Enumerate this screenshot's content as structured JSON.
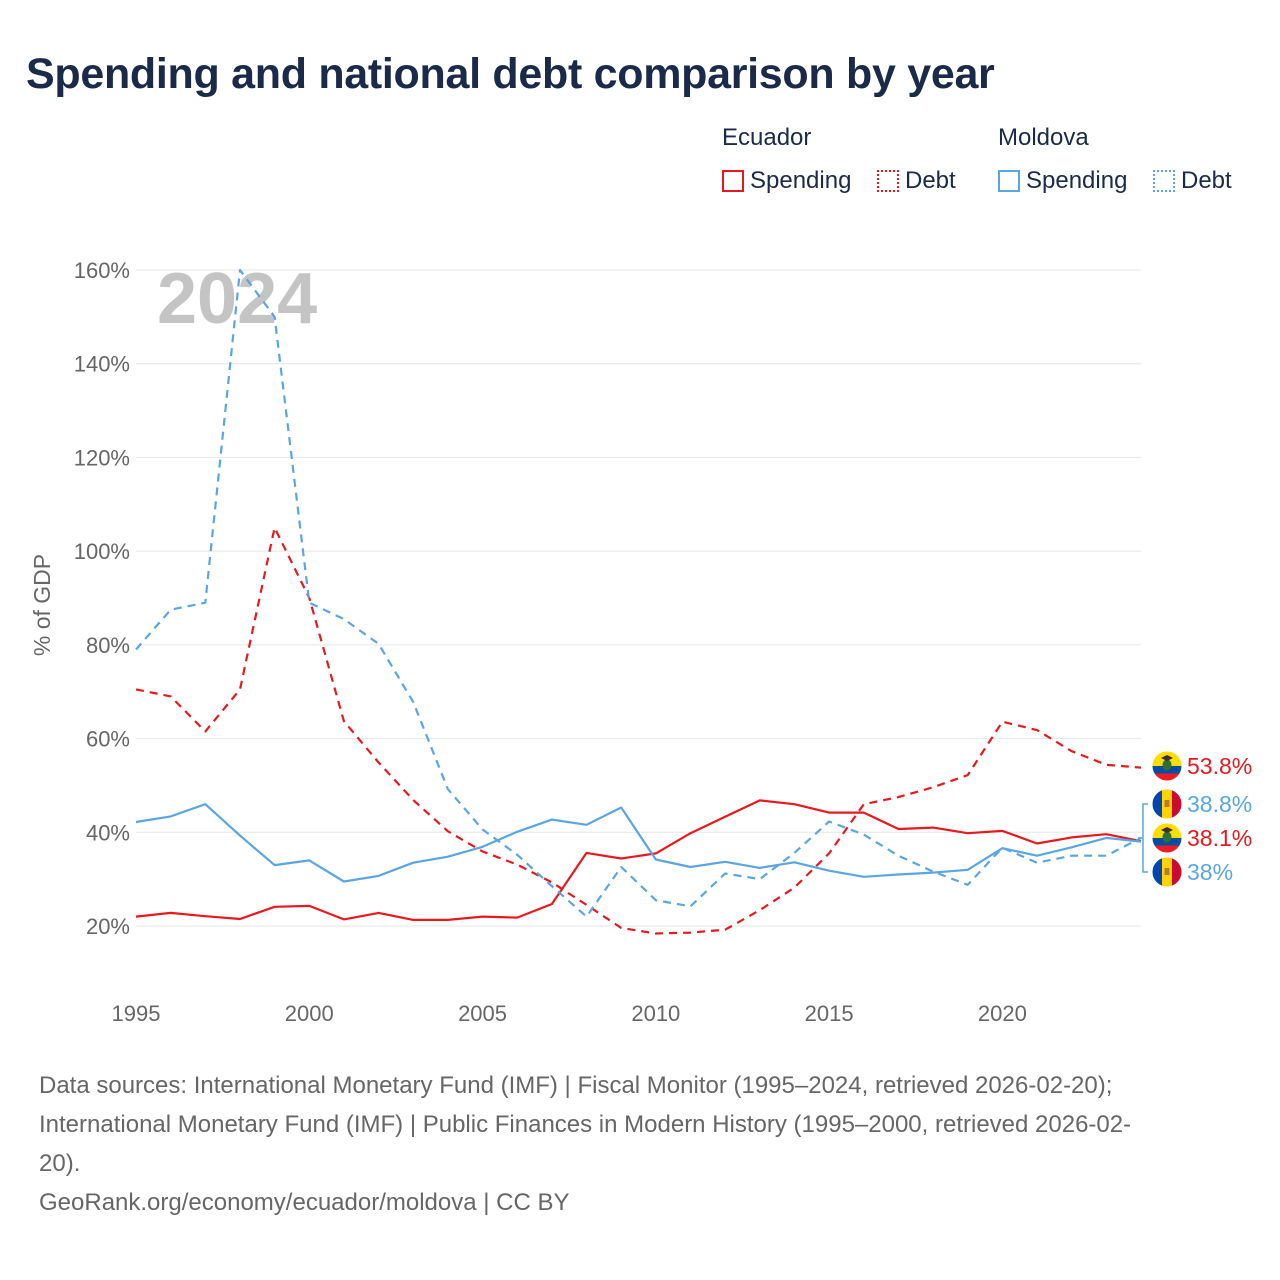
{
  "title": "Spending and national debt comparison by year",
  "year_watermark": "2024",
  "legend": {
    "groups": [
      {
        "country": "Ecuador",
        "color": "#e8191e",
        "items": [
          {
            "label": "Spending",
            "style": "solid"
          },
          {
            "label": "Debt",
            "style": "dotted"
          }
        ]
      },
      {
        "country": "Moldova",
        "color": "#5ba5e3",
        "items": [
          {
            "label": "Spending",
            "style": "solid"
          },
          {
            "label": "Debt",
            "style": "dotted"
          }
        ]
      }
    ]
  },
  "end_labels": [
    {
      "text": "53.8%",
      "country": "Ecuador",
      "color": "#e8191e"
    },
    {
      "text": "38.8%",
      "country": "Moldova",
      "color": "#5ba5e3"
    },
    {
      "text": "38.1%",
      "country": "Ecuador",
      "color": "#e8191e"
    },
    {
      "text": "38%",
      "country": "Moldova",
      "color": "#5ba5e3"
    }
  ],
  "chart_data": {
    "type": "line",
    "ylabel": "% of GDP",
    "xlabel": "",
    "xlim": [
      1995,
      2024
    ],
    "ylim": [
      10,
      160
    ],
    "x_ticks": [
      1995,
      2000,
      2005,
      2010,
      2015,
      2020
    ],
    "y_ticks": [
      20,
      40,
      60,
      80,
      100,
      120,
      140,
      160
    ],
    "y_tick_labels": [
      "20%",
      "40%",
      "60%",
      "80%",
      "100%",
      "120%",
      "140%",
      "160%"
    ],
    "x": [
      1995,
      1996,
      1997,
      1998,
      1999,
      2000,
      2001,
      2002,
      2003,
      2004,
      2005,
      2006,
      2007,
      2008,
      2009,
      2010,
      2011,
      2012,
      2013,
      2014,
      2015,
      2016,
      2017,
      2018,
      2019,
      2020,
      2021,
      2022,
      2023,
      2024
    ],
    "series": [
      {
        "name": "Ecuador Spending",
        "color": "#e8191e",
        "dash": "solid",
        "values": [
          22.0,
          22.8,
          22.1,
          21.5,
          24.1,
          24.3,
          21.4,
          22.8,
          21.3,
          21.3,
          22.0,
          21.8,
          24.7,
          35.6,
          34.4,
          35.5,
          39.8,
          43.3,
          46.8,
          46.0,
          44.2,
          44.2,
          40.7,
          41.0,
          39.8,
          40.3,
          37.6,
          38.9,
          39.6,
          38.1
        ]
      },
      {
        "name": "Ecuador Debt",
        "color": "#e8191e",
        "dash": "dashed",
        "values": [
          70.5,
          69.0,
          61.5,
          70.5,
          105.0,
          90.0,
          63.7,
          54.9,
          46.9,
          40.2,
          35.9,
          33.1,
          29.3,
          24.5,
          19.6,
          18.4,
          18.6,
          19.2,
          23.4,
          28.2,
          35.5,
          46.0,
          47.5,
          49.6,
          52.2,
          63.6,
          61.8,
          57.3,
          54.4,
          53.8
        ]
      },
      {
        "name": "Moldova Spending",
        "color": "#5ba5e3",
        "dash": "solid",
        "values": [
          42.2,
          43.4,
          46.0,
          39.3,
          33.0,
          34.0,
          29.5,
          30.7,
          33.5,
          34.8,
          36.9,
          40.1,
          42.7,
          41.6,
          45.3,
          34.2,
          32.6,
          33.7,
          32.4,
          33.6,
          31.8,
          30.5,
          31.0,
          31.4,
          32.0,
          36.6,
          35.0,
          36.8,
          38.8,
          38.0
        ]
      },
      {
        "name": "Moldova Debt",
        "color": "#5ba5e3",
        "dash": "dashed",
        "values": [
          79.0,
          87.5,
          89.0,
          160.0,
          150.0,
          89.0,
          85.5,
          80.2,
          67.8,
          49.2,
          40.6,
          35.2,
          28.5,
          22.0,
          32.6,
          25.5,
          24.2,
          31.2,
          30.0,
          35.6,
          42.3,
          39.5,
          35.0,
          31.6,
          28.8,
          36.7,
          33.5,
          35.0,
          35.0,
          38.8
        ]
      }
    ]
  },
  "footer": {
    "line1": "Data sources: International Monetary Fund (IMF) | Fiscal Monitor (1995–2024, retrieved 2026-02-20);",
    "line2": "International Monetary Fund (IMF) | Public Finances in Modern History (1995–2000, retrieved 2026-02-",
    "line3": "20).",
    "line4": "GeoRank.org/economy/ecuador/moldova | CC BY"
  }
}
